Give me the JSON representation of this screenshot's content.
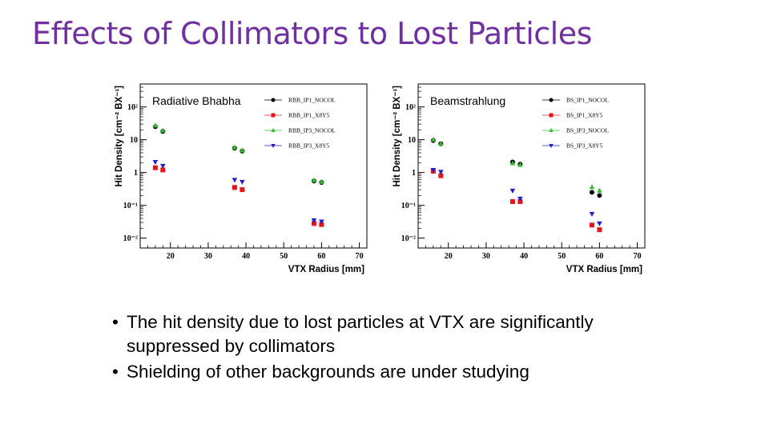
{
  "slide": {
    "title": "Effects of Collimators to Lost Particles",
    "bullets": [
      "The hit density due to lost particles at VTX are significantly suppressed by collimators",
      "Shielding of other backgrounds are under studying"
    ],
    "bullet_symbol": "•"
  },
  "chart_data": [
    {
      "type": "scatter",
      "title": "Radiative Bhabha",
      "xlabel": "VTX Radius [mm]",
      "ylabel": "Hit Density [cm⁻² BX⁻¹]",
      "xlim": [
        12,
        72
      ],
      "ylim": [
        0.005,
        500
      ],
      "yscale": "log",
      "xticks": [
        20,
        30,
        40,
        50,
        60,
        70
      ],
      "yticks": [
        {
          "value": 0.01,
          "label": "10⁻²"
        },
        {
          "value": 0.1,
          "label": "10⁻¹"
        },
        {
          "value": 1,
          "label": "1"
        },
        {
          "value": 10,
          "label": "10"
        },
        {
          "value": 100,
          "label": "10²"
        }
      ],
      "legend_position": "top-right",
      "series": [
        {
          "name": "RBB_IP1_NOCOL",
          "color": "#000000",
          "marker": "circle",
          "x": [
            16,
            18,
            37,
            39,
            58,
            60
          ],
          "y": [
            25,
            18,
            5.5,
            4.5,
            0.55,
            0.5
          ]
        },
        {
          "name": "RBB_IP1_X8Y5",
          "color": "#e8141a",
          "marker": "square",
          "x": [
            16,
            18,
            37,
            39,
            58,
            60
          ],
          "y": [
            1.4,
            1.2,
            0.35,
            0.3,
            0.028,
            0.026
          ]
        },
        {
          "name": "RBB_IP3_NOCOL",
          "color": "#2fbf2f",
          "marker": "triangle-up",
          "x": [
            16,
            18,
            37,
            39,
            58,
            60
          ],
          "y": [
            27,
            19,
            5.8,
            4.7,
            0.58,
            0.52
          ]
        },
        {
          "name": "RBB_IP3_X8Y5",
          "color": "#1f1fcc",
          "marker": "triangle-down",
          "x": [
            16,
            18,
            37,
            39,
            58,
            60
          ],
          "y": [
            2.1,
            1.6,
            0.6,
            0.52,
            0.035,
            0.032
          ]
        }
      ]
    },
    {
      "type": "scatter",
      "title": "Beamstrahlung",
      "xlabel": "VTX Radius [mm]",
      "ylabel": "Hit Density [cm⁻² BX⁻¹]",
      "xlim": [
        12,
        72
      ],
      "ylim": [
        0.005,
        500
      ],
      "yscale": "log",
      "xticks": [
        20,
        30,
        40,
        50,
        60,
        70
      ],
      "yticks": [
        {
          "value": 0.01,
          "label": "10⁻²"
        },
        {
          "value": 0.1,
          "label": "10⁻¹"
        },
        {
          "value": 1,
          "label": "1"
        },
        {
          "value": 10,
          "label": "10"
        },
        {
          "value": 100,
          "label": "10²"
        }
      ],
      "legend_position": "top-right",
      "series": [
        {
          "name": "BS_IP1_NOCOL",
          "color": "#000000",
          "marker": "circle",
          "x": [
            16,
            18,
            37,
            39,
            58,
            60
          ],
          "y": [
            9.5,
            7.5,
            2.1,
            1.8,
            0.25,
            0.2
          ]
        },
        {
          "name": "BS_IP1_X8Y5",
          "color": "#e8141a",
          "marker": "square",
          "x": [
            16,
            18,
            37,
            39,
            58,
            60
          ],
          "y": [
            1.1,
            0.8,
            0.13,
            0.13,
            0.025,
            0.018
          ]
        },
        {
          "name": "BS_IP3_NOCOL",
          "color": "#2fbf2f",
          "marker": "triangle-up",
          "x": [
            16,
            18,
            37,
            39,
            58,
            60
          ],
          "y": [
            10,
            7.5,
            1.9,
            1.7,
            0.36,
            0.28
          ]
        },
        {
          "name": "BS_IP3_X8Y5",
          "color": "#1f1fcc",
          "marker": "triangle-down",
          "x": [
            16,
            18,
            37,
            39,
            58,
            60
          ],
          "y": [
            1.2,
            1.05,
            0.28,
            0.16,
            0.055,
            0.028
          ]
        }
      ]
    }
  ]
}
